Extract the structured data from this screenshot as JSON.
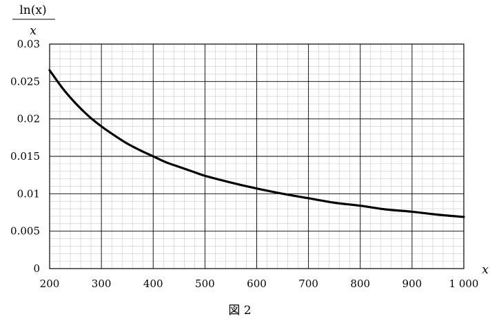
{
  "chart_data": {
    "type": "line",
    "caption": "図 2",
    "ylabel_numerator": "ln(x)",
    "ylabel_denominator": "x",
    "xlabel": "x",
    "xlim": [
      200,
      1000
    ],
    "ylim": [
      0,
      0.03
    ],
    "grid": true,
    "minor_grid_x_step": 20,
    "minor_grid_y_step": 0.001,
    "x_ticks": [
      {
        "value": 200,
        "label": "200"
      },
      {
        "value": 300,
        "label": "300"
      },
      {
        "value": 400,
        "label": "400"
      },
      {
        "value": 500,
        "label": "500"
      },
      {
        "value": 600,
        "label": "600"
      },
      {
        "value": 700,
        "label": "700"
      },
      {
        "value": 800,
        "label": "800"
      },
      {
        "value": 900,
        "label": "900"
      },
      {
        "value": 1000,
        "label": "1 000"
      }
    ],
    "y_ticks": [
      {
        "value": 0,
        "label": "0"
      },
      {
        "value": 0.005,
        "label": "0.005"
      },
      {
        "value": 0.01,
        "label": "0.01"
      },
      {
        "value": 0.015,
        "label": "0.015"
      },
      {
        "value": 0.02,
        "label": "0.02"
      },
      {
        "value": 0.025,
        "label": "0.025"
      },
      {
        "value": 0.03,
        "label": "0.03"
      }
    ],
    "series": [
      {
        "x": [
          200,
          225,
          250,
          275,
          300,
          325,
          350,
          375,
          400,
          425,
          450,
          475,
          500,
          550,
          600,
          650,
          700,
          750,
          800,
          850,
          900,
          950,
          1000
        ],
        "y": [
          0.0265,
          0.0241,
          0.0221,
          0.0204,
          0.019,
          0.0178,
          0.0167,
          0.0158,
          0.015,
          0.0142,
          0.0136,
          0.013,
          0.0124,
          0.0115,
          0.0107,
          0.01,
          0.0094,
          0.0088,
          0.0084,
          0.0079,
          0.0076,
          0.0072,
          0.0069
        ],
        "color": "#000000"
      }
    ]
  }
}
